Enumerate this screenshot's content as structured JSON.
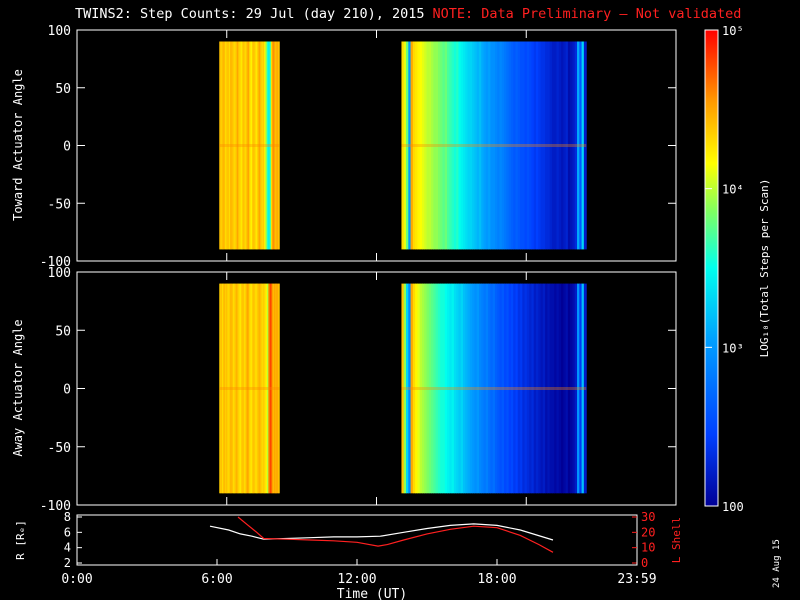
{
  "title": "TWINS2: Step Counts: 29 Jul (day 210), 2015",
  "note": "NOTE: Data Preliminary — Not validated",
  "stamp": "24 Aug 15",
  "colors": {
    "background": "#000000",
    "axes": "#ffffff",
    "note": "#ff2020",
    "lshell": "#ff2020",
    "radius": "#ffffff"
  },
  "chart_data": [
    {
      "type": "heatmap",
      "name": "toward",
      "ylabel": "Toward Actuator Angle",
      "ylim": [
        -100,
        100
      ],
      "yticks": [
        100,
        50,
        0,
        -50,
        -100
      ],
      "xlim": [
        0,
        24
      ],
      "y_data_range": [
        -90,
        90
      ],
      "intervals": [
        {
          "start": 5.7,
          "end": 8.1,
          "log_values": [
            4.4,
            4.35,
            4.4,
            4.45,
            4.3,
            4.35,
            4.4,
            4.3,
            4.45,
            4.4,
            4.35,
            4.3,
            4.4,
            4.5,
            4.35,
            4.3,
            4.25,
            4.4,
            4.35,
            4.3,
            4.45,
            4.5,
            4.3,
            4.2,
            4.35,
            4.4,
            4.3,
            4.25,
            4.4,
            4.5,
            4.4,
            4.3,
            4.35,
            4.2,
            3.9,
            3.6,
            3.4,
            3.7,
            4.3,
            4.6,
            4.5,
            4.4,
            4.5,
            4.4
          ]
        },
        {
          "start": 13.0,
          "end": 20.4,
          "log_values": [
            4.3,
            4.1,
            3.8,
            3.0,
            4.5,
            4.3,
            4.25,
            4.2,
            4.15,
            4.1,
            4.05,
            4.0,
            4.0,
            3.95,
            3.9,
            3.9,
            3.85,
            3.8,
            3.75,
            3.8,
            3.7,
            3.65,
            3.6,
            3.55,
            3.6,
            3.5,
            3.45,
            3.4,
            3.35,
            3.3,
            3.3,
            3.25,
            3.2,
            3.15,
            3.2,
            3.1,
            3.05,
            3.0,
            3.05,
            2.95,
            2.95,
            2.9,
            2.85,
            2.9,
            2.85,
            2.8,
            2.75,
            2.7,
            2.65,
            2.6,
            2.65,
            2.6,
            2.55,
            2.55,
            2.5,
            2.55,
            2.5,
            2.45,
            2.4,
            2.45,
            2.4,
            2.35,
            2.35,
            2.3,
            2.3,
            2.25,
            2.2,
            2.2,
            2.25,
            2.2,
            2.15,
            2.2,
            2.25,
            2.1,
            2.15,
            2.2,
            2.3,
            3.1,
            2.6,
            3.3,
            2.2
          ]
        }
      ]
    },
    {
      "type": "heatmap",
      "name": "away",
      "ylabel": "Away Actuator Angle",
      "ylim": [
        -100,
        100
      ],
      "yticks": [
        100,
        50,
        0,
        -50,
        -100
      ],
      "xlim": [
        0,
        24
      ],
      "y_data_range": [
        -90,
        90
      ],
      "intervals": [
        {
          "start": 5.7,
          "end": 8.1,
          "log_values": [
            4.35,
            4.4,
            4.3,
            4.45,
            4.35,
            4.4,
            4.3,
            4.35,
            4.45,
            4.4,
            4.3,
            4.35,
            4.45,
            4.4,
            4.3,
            4.25,
            4.35,
            4.4,
            4.3,
            4.35,
            4.5,
            4.45,
            4.3,
            4.25,
            4.35,
            4.4,
            4.3,
            4.3,
            4.4,
            4.45,
            4.4,
            4.3,
            4.35,
            4.3,
            4.2,
            4.0,
            4.6,
            4.8,
            4.7,
            4.4,
            4.5,
            4.45,
            4.5,
            4.4
          ]
        },
        {
          "start": 13.0,
          "end": 20.4,
          "log_values": [
            4.4,
            3.9,
            3.3,
            2.9,
            4.5,
            4.3,
            4.2,
            4.1,
            4.0,
            3.95,
            3.9,
            3.85,
            3.8,
            3.75,
            3.7,
            3.65,
            3.6,
            3.55,
            3.55,
            3.5,
            3.45,
            3.4,
            3.45,
            3.35,
            3.3,
            3.25,
            3.3,
            3.2,
            3.15,
            3.1,
            3.05,
            3.0,
            2.95,
            3.0,
            2.9,
            2.85,
            2.8,
            2.85,
            2.75,
            2.7,
            2.75,
            2.65,
            2.6,
            2.55,
            2.6,
            2.5,
            2.55,
            2.45,
            2.5,
            2.4,
            2.45,
            2.35,
            2.4,
            2.3,
            2.35,
            2.3,
            2.25,
            2.3,
            2.2,
            2.25,
            2.2,
            2.15,
            2.2,
            2.1,
            2.15,
            2.1,
            2.1,
            2.05,
            2.1,
            2.05,
            2.0,
            2.05,
            2.1,
            2.0,
            2.05,
            2.1,
            2.2,
            3.0,
            2.4,
            3.2,
            2.2
          ]
        }
      ]
    },
    {
      "type": "line",
      "name": "orbit",
      "xlabel": "Time (UT)",
      "xticks": [
        "0:00",
        "6:00",
        "12:00",
        "18:00",
        "23:59"
      ],
      "xlim": [
        0,
        24
      ],
      "ylabel_left": "R [Rₑ]",
      "ylim_left": [
        2,
        8
      ],
      "yticks_left": [
        2,
        4,
        6,
        8
      ],
      "ylabel_right": "L Shell",
      "ylim_right": [
        0,
        30
      ],
      "yticks_right": [
        0,
        10,
        20,
        30
      ],
      "series": [
        {
          "name": "R [Rₑ]",
          "axis": "left",
          "color": "#ffffff",
          "x": [
            5.7,
            6.5,
            7.0,
            7.5,
            8.0,
            9.0,
            10.0,
            11.0,
            12.0,
            13.0,
            14.0,
            15.0,
            16.0,
            17.0,
            18.0,
            19.0,
            20.4
          ],
          "y": [
            6.8,
            6.3,
            5.8,
            5.5,
            5.1,
            5.2,
            5.3,
            5.4,
            5.4,
            5.5,
            6.0,
            6.5,
            6.9,
            7.1,
            6.9,
            6.3,
            5.0
          ]
        },
        {
          "name": "L Shell",
          "axis": "right",
          "color": "#ff2020",
          "x": [
            6.9,
            7.3,
            7.7,
            8.0,
            9.0,
            10.0,
            11.0,
            12.0,
            12.9,
            13.3,
            14.0,
            15.0,
            16.0,
            17.0,
            18.0,
            19.0,
            19.8,
            20.4
          ],
          "y": [
            30,
            25,
            20,
            16,
            15.5,
            15,
            14.5,
            13.5,
            11,
            12,
            15,
            19,
            22,
            24,
            23,
            18,
            12,
            7
          ]
        }
      ]
    }
  ],
  "colorbar": {
    "label": "LOG₁₀(Total Steps per Scan)",
    "ticks": [
      {
        "log": 5,
        "label": "10⁵"
      },
      {
        "log": 4,
        "label": "10⁴"
      },
      {
        "log": 3,
        "label": "10³"
      },
      {
        "log": 2,
        "label": "100"
      }
    ],
    "range": [
      2,
      5
    ]
  }
}
